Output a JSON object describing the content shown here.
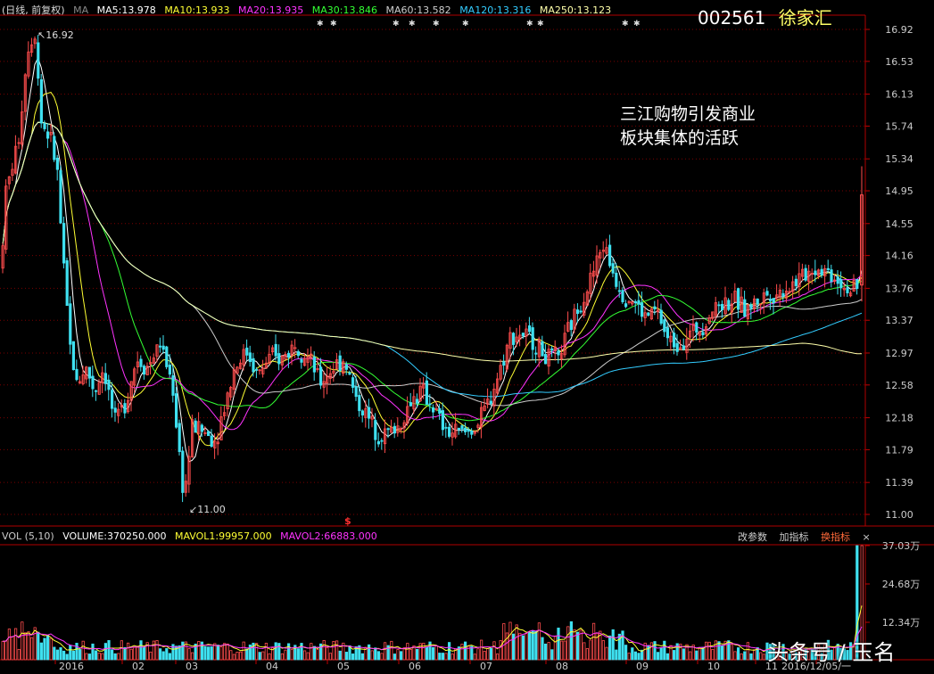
{
  "colors": {
    "bg": "#000000",
    "up": "#ff4d4d",
    "down": "#3fe0f0",
    "grid": "#7a0000",
    "axis": "#c00000",
    "text": "#cccccc",
    "ma5": "#ffffff",
    "ma10": "#ffff33",
    "ma20": "#ff33ff",
    "ma30": "#33ff33",
    "ma60": "#cccccc",
    "ma120": "#33ccff",
    "ma250": "#ffffaa"
  },
  "header": {
    "mode_label": "(日线, 前复权)",
    "ma_label": "MA",
    "ma5": "MA5:13.978",
    "ma10": "MA10:13.933",
    "ma20": "MA20:13.935",
    "ma30": "MA30:13.846",
    "ma60": "MA60:13.582",
    "ma120": "MA120:13.316",
    "ma250": "MA250:13.123"
  },
  "stock": {
    "code": "002561",
    "name": "徐家汇"
  },
  "annotation": {
    "line1": "三江购物引发商业",
    "line2": "板块集体的活跃"
  },
  "price_axis_labels": [
    "16.92",
    "16.53",
    "16.13",
    "15.74",
    "15.34",
    "14.95",
    "14.55",
    "14.16",
    "13.76",
    "13.37",
    "12.97",
    "12.58",
    "12.18",
    "11.79",
    "11.39",
    "11.00"
  ],
  "extreme_labels": {
    "high": "16.92",
    "low": "11.00"
  },
  "event_marker": "$",
  "volume_header": {
    "label": "VOL (5,10)",
    "volume": "VOLUME:370250.000",
    "mavol1": "MAVOL1:99957.000",
    "mavol2": "MAVOL2:66883.000"
  },
  "volume_buttons": {
    "params": "改参数",
    "add": "加指标",
    "change": "换指标",
    "close": "×"
  },
  "volume_axis_labels": [
    "37.03万",
    "24.68万",
    "12.34万"
  ],
  "month_labels": [
    "2016",
    "02",
    "03",
    "04",
    "05",
    "06",
    "07",
    "08",
    "09",
    "10",
    "11",
    "2016/12/05/一"
  ],
  "watermark": "头条号 / 玉名",
  "chart_data": {
    "type": "candlestick",
    "price_range": [
      11.0,
      16.92
    ],
    "price_path": [
      [
        0,
        14.0
      ],
      [
        5,
        14.9
      ],
      [
        20,
        15.6
      ],
      [
        30,
        16.7
      ],
      [
        38,
        16.9
      ],
      [
        45,
        15.8
      ],
      [
        55,
        15.6
      ],
      [
        63,
        15.2
      ],
      [
        70,
        14.0
      ],
      [
        78,
        13.0
      ],
      [
        85,
        12.6
      ],
      [
        95,
        12.8
      ],
      [
        105,
        12.5
      ],
      [
        115,
        12.8
      ],
      [
        128,
        12.1
      ],
      [
        140,
        12.4
      ],
      [
        152,
        12.9
      ],
      [
        165,
        12.8
      ],
      [
        178,
        13.1
      ],
      [
        192,
        12.6
      ],
      [
        205,
        11.2
      ],
      [
        215,
        12.1
      ],
      [
        228,
        12.0
      ],
      [
        240,
        11.9
      ],
      [
        250,
        12.3
      ],
      [
        262,
        12.8
      ],
      [
        275,
        13.0
      ],
      [
        288,
        12.7
      ],
      [
        300,
        12.9
      ],
      [
        315,
        12.9
      ],
      [
        330,
        13.1
      ],
      [
        345,
        12.9
      ],
      [
        358,
        12.6
      ],
      [
        372,
        12.8
      ],
      [
        385,
        12.9
      ],
      [
        398,
        12.4
      ],
      [
        410,
        12.2
      ],
      [
        422,
        12.0
      ],
      [
        435,
        12.0
      ],
      [
        448,
        12.1
      ],
      [
        460,
        12.4
      ],
      [
        472,
        12.5
      ],
      [
        485,
        12.3
      ],
      [
        498,
        12.0
      ],
      [
        510,
        12.0
      ],
      [
        522,
        12.0
      ],
      [
        535,
        12.1
      ],
      [
        548,
        12.4
      ],
      [
        560,
        12.8
      ],
      [
        572,
        13.2
      ],
      [
        585,
        13.2
      ],
      [
        598,
        13.1
      ],
      [
        612,
        12.9
      ],
      [
        625,
        12.9
      ],
      [
        638,
        13.3
      ],
      [
        650,
        13.6
      ],
      [
        662,
        13.9
      ],
      [
        675,
        14.3
      ],
      [
        685,
        14.0
      ],
      [
        697,
        13.7
      ],
      [
        710,
        13.6
      ],
      [
        722,
        13.4
      ],
      [
        735,
        13.5
      ],
      [
        748,
        13.1
      ],
      [
        760,
        13.1
      ],
      [
        772,
        13.2
      ],
      [
        785,
        13.3
      ],
      [
        797,
        13.5
      ],
      [
        810,
        13.6
      ],
      [
        822,
        13.6
      ],
      [
        835,
        13.5
      ],
      [
        848,
        13.6
      ],
      [
        860,
        13.7
      ],
      [
        872,
        13.7
      ],
      [
        885,
        13.8
      ],
      [
        898,
        13.9
      ],
      [
        910,
        14.0
      ],
      [
        922,
        14.0
      ],
      [
        935,
        13.9
      ],
      [
        945,
        13.8
      ],
      [
        955,
        13.7
      ],
      [
        965,
        13.8
      ]
    ],
    "last_bar": {
      "open": 13.8,
      "high": 15.25,
      "low": 13.6,
      "close": 14.9
    }
  }
}
